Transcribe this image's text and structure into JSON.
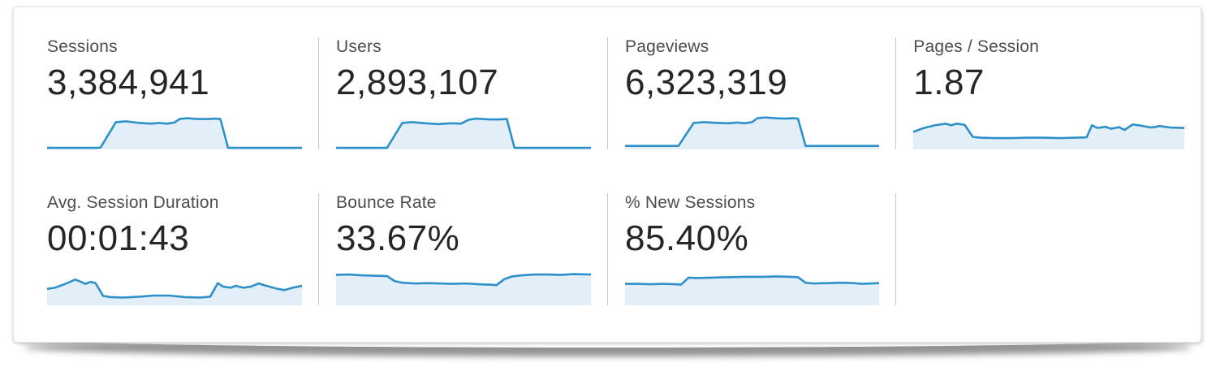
{
  "colors": {
    "spark_line": "#2d90c9",
    "spark_fill": "#e2eef8",
    "divider": "#c9c9c9",
    "panel_border": "#e3e3e3",
    "label_text": "#4d4d4d",
    "value_text": "#262626"
  },
  "metrics": [
    {
      "label": "Sessions",
      "value": "3,384,941"
    },
    {
      "label": "Users",
      "value": "2,893,107"
    },
    {
      "label": "Pageviews",
      "value": "6,323,319"
    },
    {
      "label": "Pages / Session",
      "value": "1.87"
    },
    {
      "label": "Avg. Session Duration",
      "value": "00:01:43"
    },
    {
      "label": "Bounce Rate",
      "value": "33.67%"
    },
    {
      "label": "% New Sessions",
      "value": "85.40%"
    }
  ],
  "chart_data": [
    {
      "type": "area",
      "title": "Sessions",
      "value_label": "3,384,941",
      "units": "relative height 0-100 (unlabeled sparkline, no axes)",
      "x_range": [
        0,
        100
      ],
      "y_range": [
        0,
        100
      ],
      "points": [
        [
          0,
          4
        ],
        [
          20,
          4
        ],
        [
          21,
          5
        ],
        [
          27,
          70
        ],
        [
          31,
          72
        ],
        [
          36,
          68
        ],
        [
          41,
          66
        ],
        [
          44,
          68
        ],
        [
          47,
          66
        ],
        [
          50,
          69
        ],
        [
          52,
          78
        ],
        [
          55,
          80
        ],
        [
          59,
          78
        ],
        [
          63,
          78
        ],
        [
          66,
          79
        ],
        [
          68,
          78
        ],
        [
          71,
          4
        ],
        [
          80,
          4
        ],
        [
          100,
          4
        ]
      ]
    },
    {
      "type": "area",
      "title": "Users",
      "value_label": "2,893,107",
      "units": "relative height 0-100 (unlabeled sparkline, no axes)",
      "x_range": [
        0,
        100
      ],
      "y_range": [
        0,
        100
      ],
      "points": [
        [
          0,
          4
        ],
        [
          20,
          4
        ],
        [
          26,
          68
        ],
        [
          30,
          70
        ],
        [
          35,
          67
        ],
        [
          40,
          65
        ],
        [
          45,
          67
        ],
        [
          49,
          66
        ],
        [
          52,
          76
        ],
        [
          55,
          79
        ],
        [
          60,
          77
        ],
        [
          64,
          77
        ],
        [
          67,
          78
        ],
        [
          70,
          4
        ],
        [
          80,
          4
        ],
        [
          100,
          4
        ]
      ]
    },
    {
      "type": "area",
      "title": "Pageviews",
      "value_label": "6,323,319",
      "units": "relative height 0-100 (unlabeled sparkline, no axes)",
      "x_range": [
        0,
        100
      ],
      "y_range": [
        0,
        100
      ],
      "points": [
        [
          0,
          9
        ],
        [
          21,
          9
        ],
        [
          27,
          68
        ],
        [
          31,
          70
        ],
        [
          36,
          68
        ],
        [
          41,
          67
        ],
        [
          44,
          69
        ],
        [
          47,
          67
        ],
        [
          50,
          70
        ],
        [
          52,
          80
        ],
        [
          55,
          82
        ],
        [
          59,
          80
        ],
        [
          63,
          79
        ],
        [
          66,
          80
        ],
        [
          68,
          79
        ],
        [
          71,
          9
        ],
        [
          80,
          9
        ],
        [
          100,
          9
        ]
      ]
    },
    {
      "type": "area",
      "title": "Pages / Session",
      "value_label": "1.87",
      "units": "relative height 0-100 (unlabeled sparkline, no axes)",
      "x_range": [
        0,
        100
      ],
      "y_range": [
        0,
        100
      ],
      "points": [
        [
          0,
          45
        ],
        [
          4,
          55
        ],
        [
          8,
          62
        ],
        [
          12,
          66
        ],
        [
          14,
          62
        ],
        [
          16,
          66
        ],
        [
          19,
          63
        ],
        [
          22,
          32
        ],
        [
          25,
          30
        ],
        [
          30,
          29
        ],
        [
          36,
          29
        ],
        [
          42,
          30
        ],
        [
          48,
          30
        ],
        [
          54,
          29
        ],
        [
          60,
          30
        ],
        [
          64,
          31
        ],
        [
          66,
          62
        ],
        [
          68,
          55
        ],
        [
          71,
          58
        ],
        [
          73,
          53
        ],
        [
          76,
          57
        ],
        [
          78,
          50
        ],
        [
          81,
          64
        ],
        [
          84,
          61
        ],
        [
          88,
          56
        ],
        [
          91,
          60
        ],
        [
          95,
          56
        ],
        [
          100,
          55
        ]
      ]
    },
    {
      "type": "area",
      "title": "Avg. Session Duration",
      "value_label": "00:01:43",
      "units": "relative height 0-100 (unlabeled sparkline, no axes)",
      "x_range": [
        0,
        100
      ],
      "y_range": [
        0,
        100
      ],
      "points": [
        [
          0,
          42
        ],
        [
          3,
          45
        ],
        [
          6,
          52
        ],
        [
          9,
          60
        ],
        [
          11,
          66
        ],
        [
          13,
          61
        ],
        [
          15,
          55
        ],
        [
          17,
          60
        ],
        [
          19,
          57
        ],
        [
          22,
          24
        ],
        [
          25,
          21
        ],
        [
          30,
          20
        ],
        [
          36,
          22
        ],
        [
          42,
          25
        ],
        [
          48,
          25
        ],
        [
          54,
          21
        ],
        [
          60,
          20
        ],
        [
          64,
          22
        ],
        [
          67,
          57
        ],
        [
          69,
          48
        ],
        [
          72,
          45
        ],
        [
          74,
          50
        ],
        [
          77,
          45
        ],
        [
          80,
          48
        ],
        [
          83,
          56
        ],
        [
          86,
          50
        ],
        [
          90,
          43
        ],
        [
          93,
          39
        ],
        [
          97,
          46
        ],
        [
          100,
          50
        ]
      ]
    },
    {
      "type": "area",
      "title": "Bounce Rate",
      "value_label": "33.67%",
      "units": "relative height 0-100 (unlabeled sparkline, no axes)",
      "x_range": [
        0,
        100
      ],
      "y_range": [
        0,
        100
      ],
      "points": [
        [
          0,
          78
        ],
        [
          5,
          79
        ],
        [
          10,
          77
        ],
        [
          15,
          76
        ],
        [
          20,
          75
        ],
        [
          23,
          62
        ],
        [
          26,
          58
        ],
        [
          31,
          56
        ],
        [
          36,
          57
        ],
        [
          41,
          56
        ],
        [
          46,
          55
        ],
        [
          51,
          56
        ],
        [
          56,
          54
        ],
        [
          60,
          53
        ],
        [
          63,
          52
        ],
        [
          66,
          67
        ],
        [
          69,
          74
        ],
        [
          73,
          77
        ],
        [
          78,
          79
        ],
        [
          83,
          79
        ],
        [
          88,
          78
        ],
        [
          93,
          80
        ],
        [
          100,
          79
        ]
      ]
    },
    {
      "type": "area",
      "title": "% New Sessions",
      "value_label": "85.40%",
      "units": "relative height 0-100 (unlabeled sparkline, no axes)",
      "x_range": [
        0,
        100
      ],
      "y_range": [
        0,
        100
      ],
      "points": [
        [
          0,
          55
        ],
        [
          5,
          55
        ],
        [
          10,
          54
        ],
        [
          15,
          55
        ],
        [
          20,
          54
        ],
        [
          22,
          53
        ],
        [
          25,
          71
        ],
        [
          28,
          70
        ],
        [
          34,
          71
        ],
        [
          40,
          72
        ],
        [
          47,
          73
        ],
        [
          54,
          73
        ],
        [
          60,
          74
        ],
        [
          65,
          73
        ],
        [
          68,
          72
        ],
        [
          71,
          58
        ],
        [
          74,
          56
        ],
        [
          80,
          57
        ],
        [
          85,
          58
        ],
        [
          90,
          57
        ],
        [
          93,
          55
        ],
        [
          100,
          57
        ]
      ]
    }
  ]
}
